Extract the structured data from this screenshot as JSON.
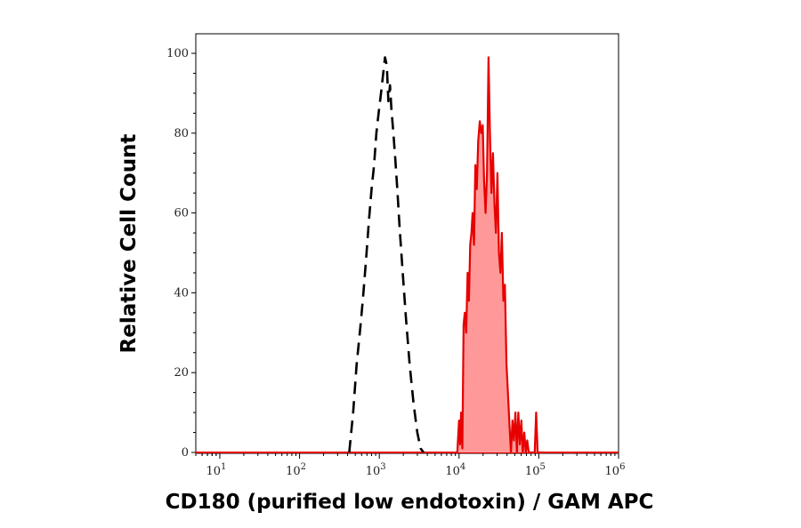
{
  "chart_data": {
    "type": "area",
    "title": "",
    "xlabel": "CD180 (purified low endotoxin) / GAM APC",
    "ylabel": "Relative Cell Count",
    "xscale": "log",
    "xlim": [
      5,
      1000000
    ],
    "ylim": [
      0,
      100
    ],
    "x_ticks": [
      {
        "value": 10,
        "base": "10",
        "exp": "1"
      },
      {
        "value": 100,
        "base": "10",
        "exp": "2"
      },
      {
        "value": 1000,
        "base": "10",
        "exp": "3"
      },
      {
        "value": 10000,
        "base": "10",
        "exp": "4"
      },
      {
        "value": 100000,
        "base": "10",
        "exp": "5"
      },
      {
        "value": 1000000,
        "base": "10",
        "exp": "6"
      }
    ],
    "y_ticks": [
      "0",
      "20",
      "40",
      "60",
      "80",
      "100"
    ],
    "grid": false,
    "legend": "none",
    "series": [
      {
        "style": "dashed",
        "color": "#000000",
        "fill": "none",
        "points": [
          [
            420,
            0
          ],
          [
            470,
            10
          ],
          [
            520,
            22
          ],
          [
            570,
            30
          ],
          [
            620,
            38
          ],
          [
            680,
            48
          ],
          [
            740,
            58
          ],
          [
            800,
            66
          ],
          [
            860,
            72
          ],
          [
            920,
            80
          ],
          [
            980,
            85
          ],
          [
            1050,
            90
          ],
          [
            1120,
            95
          ],
          [
            1180,
            99
          ],
          [
            1240,
            97
          ],
          [
            1300,
            88
          ],
          [
            1360,
            92
          ],
          [
            1420,
            86
          ],
          [
            1500,
            80
          ],
          [
            1580,
            74
          ],
          [
            1680,
            66
          ],
          [
            1800,
            56
          ],
          [
            1950,
            46
          ],
          [
            2150,
            34
          ],
          [
            2400,
            22
          ],
          [
            2700,
            12
          ],
          [
            3000,
            5
          ],
          [
            3300,
            1
          ],
          [
            3600,
            0
          ]
        ]
      },
      {
        "style": "solid",
        "color": "#e60000",
        "fill": "#ff9999",
        "points": [
          [
            9500,
            0
          ],
          [
            10000,
            8
          ],
          [
            10300,
            2
          ],
          [
            10600,
            10
          ],
          [
            11000,
            1
          ],
          [
            11400,
            32
          ],
          [
            11800,
            35
          ],
          [
            12300,
            30
          ],
          [
            12800,
            45
          ],
          [
            13300,
            38
          ],
          [
            13800,
            52
          ],
          [
            14300,
            55
          ],
          [
            14800,
            60
          ],
          [
            15400,
            52
          ],
          [
            16000,
            72
          ],
          [
            16700,
            66
          ],
          [
            17400,
            78
          ],
          [
            18200,
            83
          ],
          [
            19000,
            80
          ],
          [
            19800,
            82
          ],
          [
            20600,
            68
          ],
          [
            21500,
            60
          ],
          [
            22400,
            70
          ],
          [
            23400,
            99
          ],
          [
            24400,
            80
          ],
          [
            25500,
            65
          ],
          [
            26600,
            75
          ],
          [
            27800,
            62
          ],
          [
            29000,
            55
          ],
          [
            30300,
            70
          ],
          [
            31600,
            50
          ],
          [
            33000,
            45
          ],
          [
            34400,
            55
          ],
          [
            36000,
            38
          ],
          [
            37600,
            42
          ],
          [
            39300,
            22
          ],
          [
            41000,
            15
          ],
          [
            42800,
            7
          ],
          [
            44700,
            0
          ],
          [
            46700,
            8
          ],
          [
            48700,
            3
          ],
          [
            50900,
            10
          ],
          [
            53100,
            0
          ],
          [
            55400,
            10
          ],
          [
            57800,
            2
          ],
          [
            60400,
            8
          ],
          [
            63000,
            0
          ],
          [
            65800,
            5
          ],
          [
            68700,
            0
          ],
          [
            71700,
            3
          ],
          [
            74800,
            0
          ],
          [
            78100,
            0
          ],
          [
            81500,
            0
          ],
          [
            85100,
            0
          ],
          [
            88800,
            0
          ],
          [
            92700,
            10
          ],
          [
            96800,
            0
          ],
          [
            110000,
            0
          ]
        ]
      }
    ]
  }
}
